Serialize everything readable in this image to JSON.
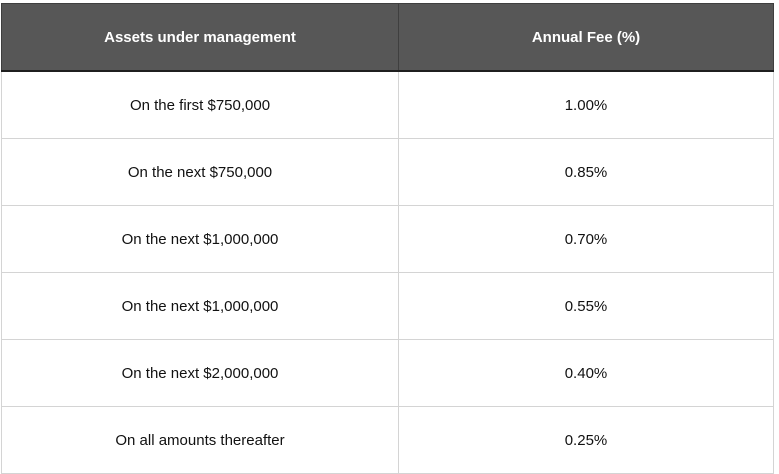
{
  "table": {
    "headers": {
      "assets": "Assets under management",
      "fee": "Annual Fee (%)"
    },
    "rows": [
      {
        "assets": "On the first $750,000",
        "fee": "1.00%"
      },
      {
        "assets": "On the next $750,000",
        "fee": "0.85%"
      },
      {
        "assets": "On the next $1,000,000",
        "fee": "0.70%"
      },
      {
        "assets": "On the next $1,000,000",
        "fee": "0.55%"
      },
      {
        "assets": "On the next $2,000,000",
        "fee": "0.40%"
      },
      {
        "assets": "On all amounts thereafter",
        "fee": "0.25%"
      }
    ]
  },
  "colors": {
    "header_background": "#575757",
    "header_text": "#ffffff",
    "grid_line": "#d4d4d4"
  }
}
